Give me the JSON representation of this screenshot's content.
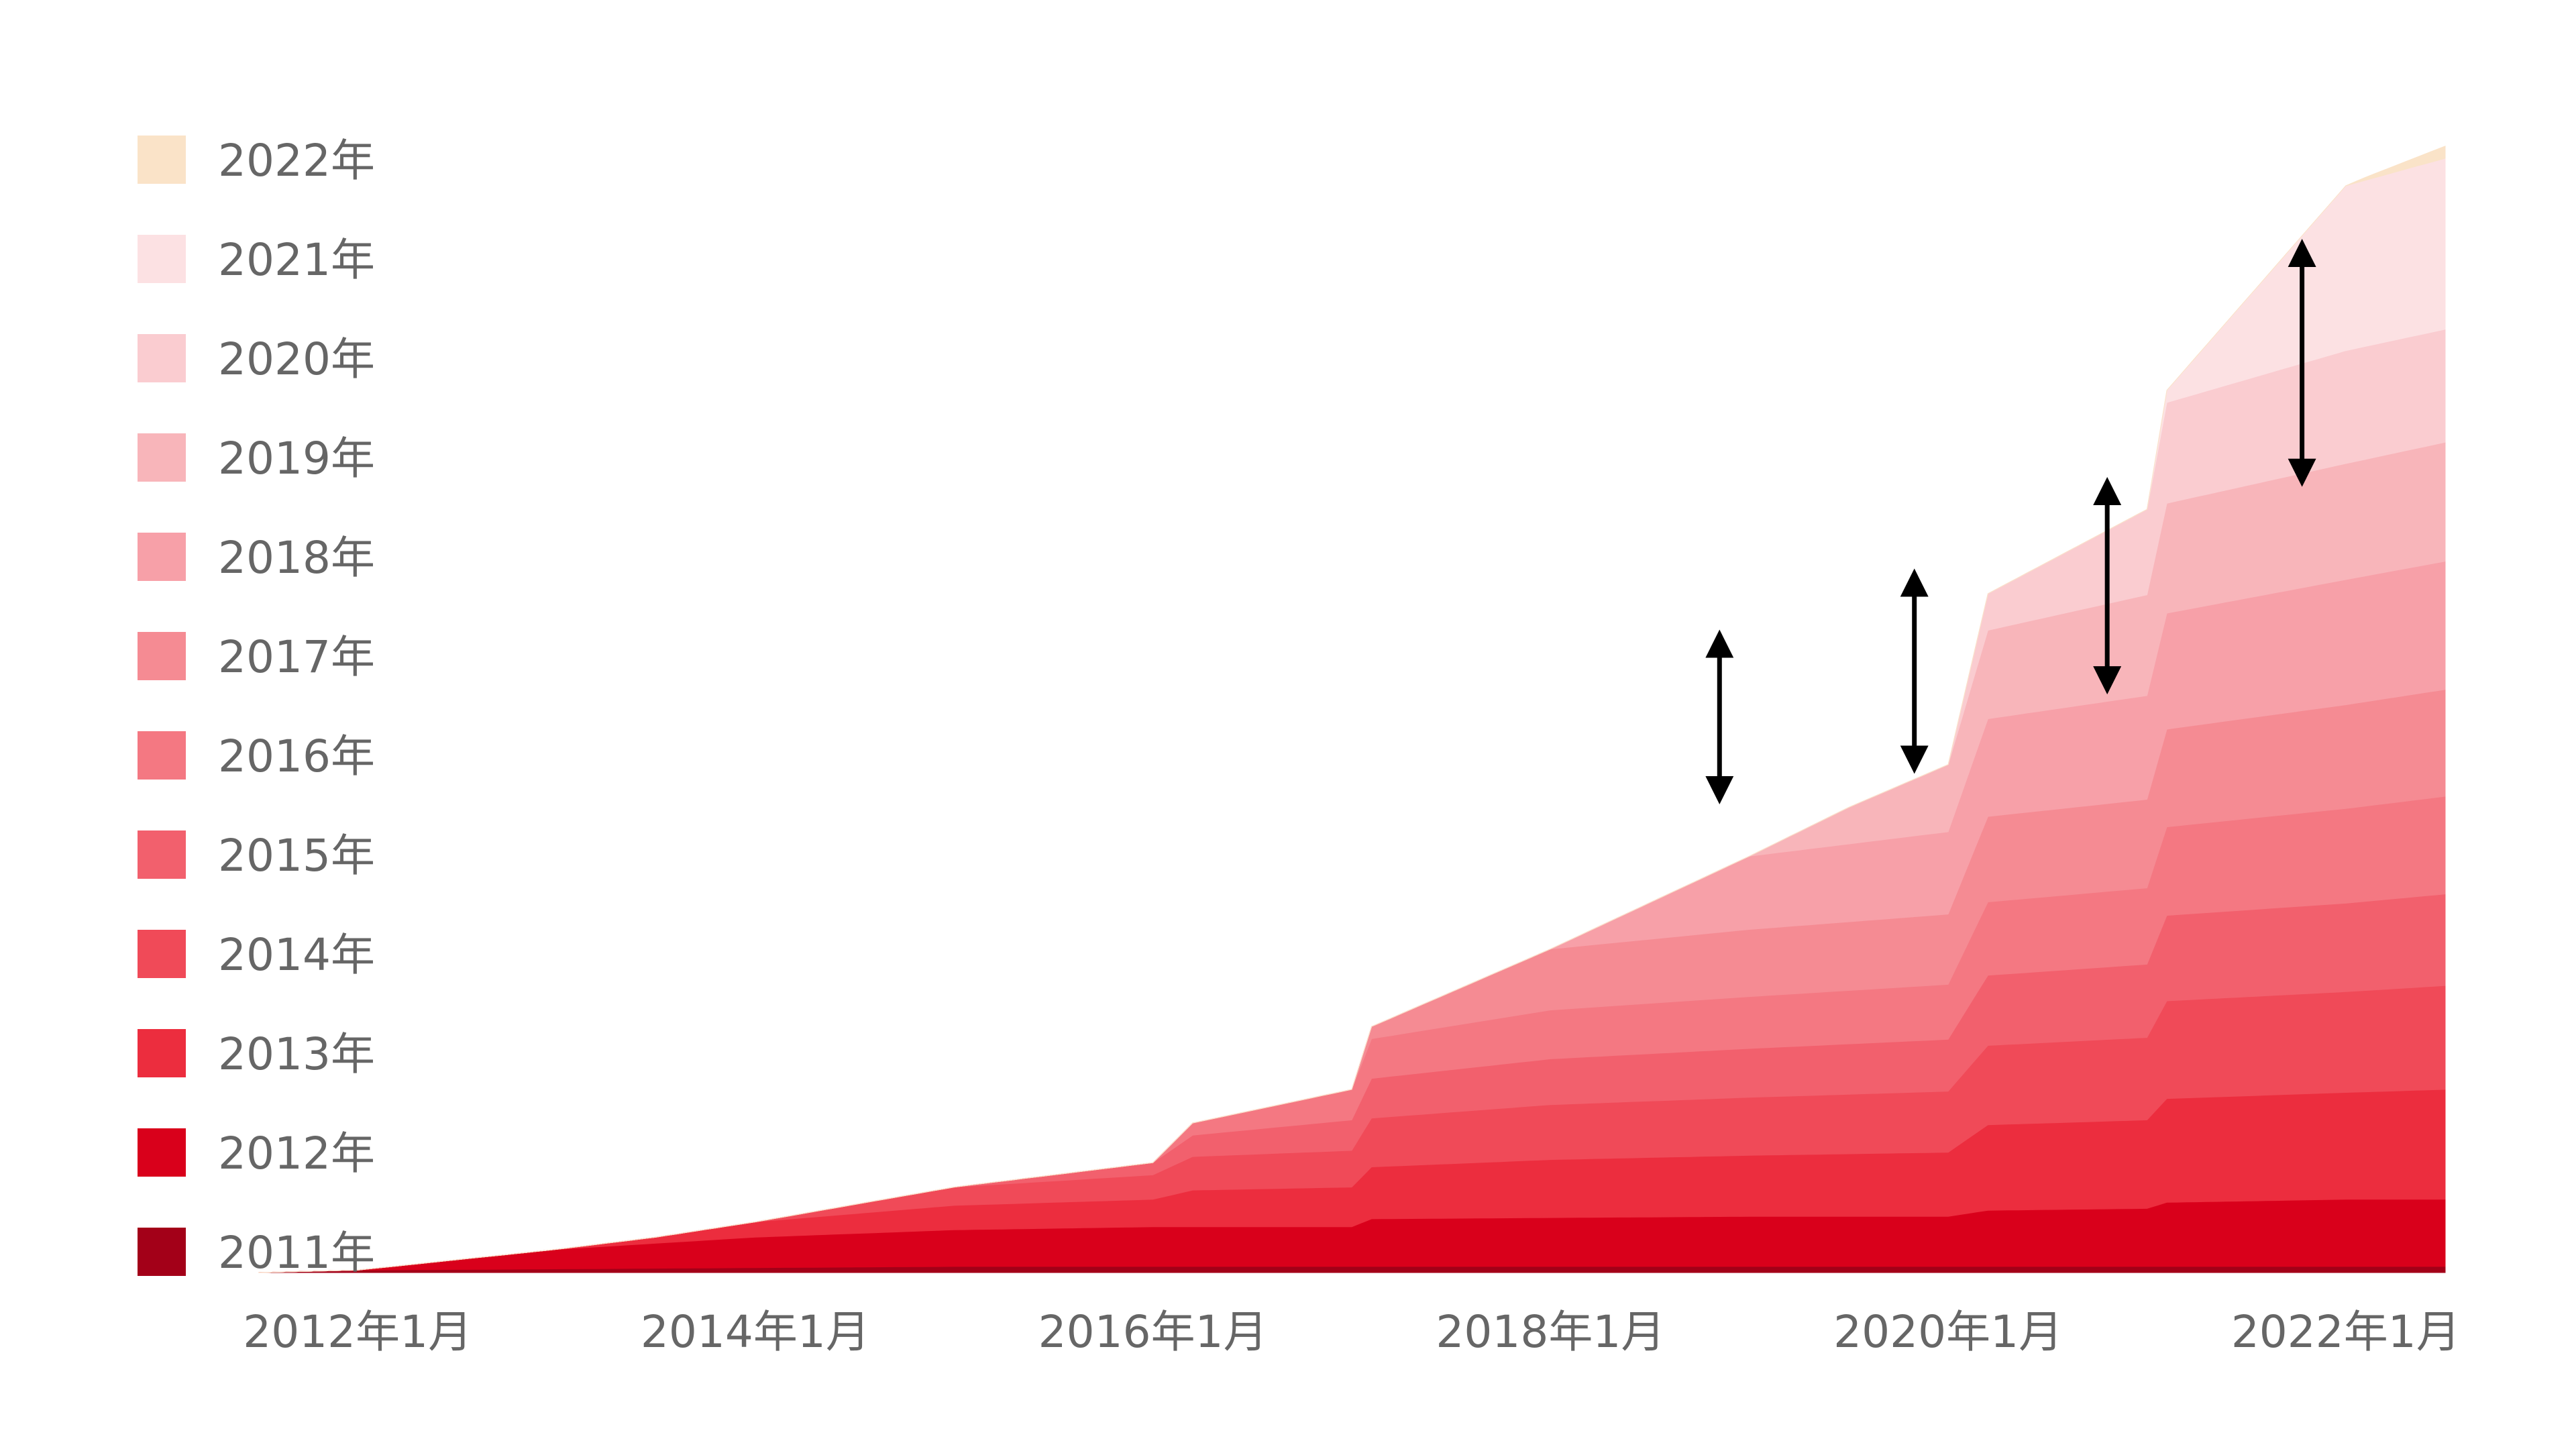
{
  "chart_data": {
    "type": "area",
    "stacked": true,
    "title": "",
    "xlabel": "",
    "ylabel": "",
    "x_start": "2011年7月",
    "x_end": "2022年7月",
    "x_ticks": [
      "2012年1月",
      "2014年1月",
      "2016年1月",
      "2018年1月",
      "2020年1月",
      "2022年1月"
    ],
    "grid": false,
    "legend": "left",
    "series": [
      {
        "name": "2011年",
        "color": "#A30018",
        "points": [
          [
            2011.5,
            0.0
          ],
          [
            2012.0,
            0.4
          ],
          [
            2013.0,
            0.6
          ],
          [
            2014.0,
            0.8
          ],
          [
            2015.0,
            1.0
          ],
          [
            2016.0,
            1.0
          ],
          [
            2017.0,
            1.0
          ],
          [
            2018.0,
            1.0
          ],
          [
            2019.0,
            1.0
          ],
          [
            2020.0,
            1.0
          ],
          [
            2021.0,
            1.0
          ],
          [
            2022.0,
            1.0
          ],
          [
            2022.5,
            1.0
          ]
        ]
      },
      {
        "name": "2012年",
        "color": "#D9001B",
        "points": [
          [
            2011.5,
            0.0
          ],
          [
            2012.0,
            0.0
          ],
          [
            2013.0,
            3.2
          ],
          [
            2014.0,
            5.0
          ],
          [
            2015.0,
            6.0
          ],
          [
            2016.0,
            6.5
          ],
          [
            2017.0,
            6.5
          ],
          [
            2017.1,
            7.8
          ],
          [
            2018.0,
            8.0
          ],
          [
            2019.0,
            8.2
          ],
          [
            2020.0,
            8.2
          ],
          [
            2020.2,
            9.2
          ],
          [
            2021.0,
            9.5
          ],
          [
            2021.1,
            10.5
          ],
          [
            2022.0,
            11.0
          ],
          [
            2022.5,
            11.0
          ]
        ]
      },
      {
        "name": "2013年",
        "color": "#EC2D3E",
        "points": [
          [
            2013.0,
            0.0
          ],
          [
            2013.5,
            1.0
          ],
          [
            2014.0,
            2.5
          ],
          [
            2015.0,
            4.0
          ],
          [
            2016.0,
            4.5
          ],
          [
            2016.2,
            6.0
          ],
          [
            2017.0,
            6.5
          ],
          [
            2017.1,
            8.5
          ],
          [
            2018.0,
            9.5
          ],
          [
            2019.0,
            10.0
          ],
          [
            2020.0,
            10.5
          ],
          [
            2020.2,
            14.0
          ],
          [
            2021.0,
            14.5
          ],
          [
            2021.1,
            17.0
          ],
          [
            2022.0,
            17.5
          ],
          [
            2022.5,
            18.0
          ]
        ]
      },
      {
        "name": "2014年",
        "color": "#F04A58",
        "points": [
          [
            2014.0,
            0.0
          ],
          [
            2014.5,
            1.5
          ],
          [
            2015.0,
            3.0
          ],
          [
            2016.0,
            4.0
          ],
          [
            2016.2,
            5.5
          ],
          [
            2017.0,
            6.0
          ],
          [
            2017.1,
            8.0
          ],
          [
            2018.0,
            9.0
          ],
          [
            2019.0,
            9.5
          ],
          [
            2020.0,
            10.0
          ],
          [
            2020.2,
            13.0
          ],
          [
            2021.0,
            13.5
          ],
          [
            2021.1,
            16.0
          ],
          [
            2022.0,
            16.5
          ],
          [
            2022.5,
            17.0
          ]
        ]
      },
      {
        "name": "2015年",
        "color": "#F2606D",
        "points": [
          [
            2015.0,
            0.0
          ],
          [
            2015.5,
            1.0
          ],
          [
            2016.0,
            2.0
          ],
          [
            2016.2,
            3.5
          ],
          [
            2017.0,
            5.0
          ],
          [
            2017.1,
            6.5
          ],
          [
            2018.0,
            7.5
          ],
          [
            2019.0,
            8.0
          ],
          [
            2020.0,
            8.5
          ],
          [
            2020.2,
            11.5
          ],
          [
            2021.0,
            12.0
          ],
          [
            2021.1,
            14.0
          ],
          [
            2022.0,
            14.5
          ],
          [
            2022.5,
            15.0
          ]
        ]
      },
      {
        "name": "2016年",
        "color": "#F47882",
        "points": [
          [
            2016.0,
            0.0
          ],
          [
            2016.2,
            2.0
          ],
          [
            2017.0,
            5.0
          ],
          [
            2017.1,
            6.5
          ],
          [
            2018.0,
            8.0
          ],
          [
            2019.0,
            8.5
          ],
          [
            2020.0,
            9.0
          ],
          [
            2020.2,
            12.0
          ],
          [
            2021.0,
            12.5
          ],
          [
            2021.1,
            14.5
          ],
          [
            2022.0,
            15.5
          ],
          [
            2022.5,
            16.0
          ]
        ]
      },
      {
        "name": "2017年",
        "color": "#F58B93",
        "points": [
          [
            2017.0,
            0.0
          ],
          [
            2017.1,
            2.0
          ],
          [
            2018.0,
            10.0
          ],
          [
            2019.0,
            11.0
          ],
          [
            2020.0,
            11.5
          ],
          [
            2020.2,
            14.0
          ],
          [
            2021.0,
            14.5
          ],
          [
            2021.1,
            16.0
          ],
          [
            2022.0,
            17.0
          ],
          [
            2022.5,
            17.5
          ]
        ]
      },
      {
        "name": "2018年",
        "color": "#F7A0A8",
        "points": [
          [
            2018.0,
            0.0
          ],
          [
            2018.5,
            6.0
          ],
          [
            2019.0,
            12.0
          ],
          [
            2020.0,
            13.5
          ],
          [
            2020.2,
            16.0
          ],
          [
            2021.0,
            17.0
          ],
          [
            2021.1,
            19.0
          ],
          [
            2022.0,
            20.5
          ],
          [
            2022.5,
            21.0
          ]
        ]
      },
      {
        "name": "2019年",
        "color": "#F8B5BA",
        "points": [
          [
            2019.0,
            0.0
          ],
          [
            2019.5,
            6.0
          ],
          [
            2020.0,
            11.0
          ],
          [
            2020.2,
            14.5
          ],
          [
            2021.0,
            16.5
          ],
          [
            2021.1,
            18.0
          ],
          [
            2022.0,
            19.0
          ],
          [
            2022.5,
            19.5
          ]
        ]
      },
      {
        "name": "2020年",
        "color": "#FACCD0",
        "points": [
          [
            2020.0,
            0.0
          ],
          [
            2020.2,
            6.0
          ],
          [
            2021.0,
            14.0
          ],
          [
            2021.1,
            16.5
          ],
          [
            2022.0,
            18.5
          ],
          [
            2022.5,
            18.5
          ]
        ]
      },
      {
        "name": "2021年",
        "color": "#FCE1E3",
        "points": [
          [
            2021.0,
            0.0
          ],
          [
            2021.1,
            2.0
          ],
          [
            2022.0,
            27.0
          ],
          [
            2022.5,
            28.0
          ]
        ]
      },
      {
        "name": "2022年",
        "color": "#FAE3C8",
        "points": [
          [
            2022.0,
            0.0
          ],
          [
            2022.1,
            0.5
          ],
          [
            2022.5,
            2.0
          ]
        ]
      }
    ],
    "annotations": [
      {
        "type": "double-arrow",
        "x": 2018.85,
        "y_from": 79.0,
        "y_to": 103.0
      },
      {
        "type": "double-arrow",
        "x": 2019.83,
        "y_from": 84.0,
        "y_to": 113.0
      },
      {
        "type": "double-arrow",
        "x": 2020.8,
        "y_from": 97.0,
        "y_to": 128.0
      },
      {
        "type": "double-arrow",
        "x": 2021.78,
        "y_from": 131.0,
        "y_to": 167.0
      }
    ]
  }
}
